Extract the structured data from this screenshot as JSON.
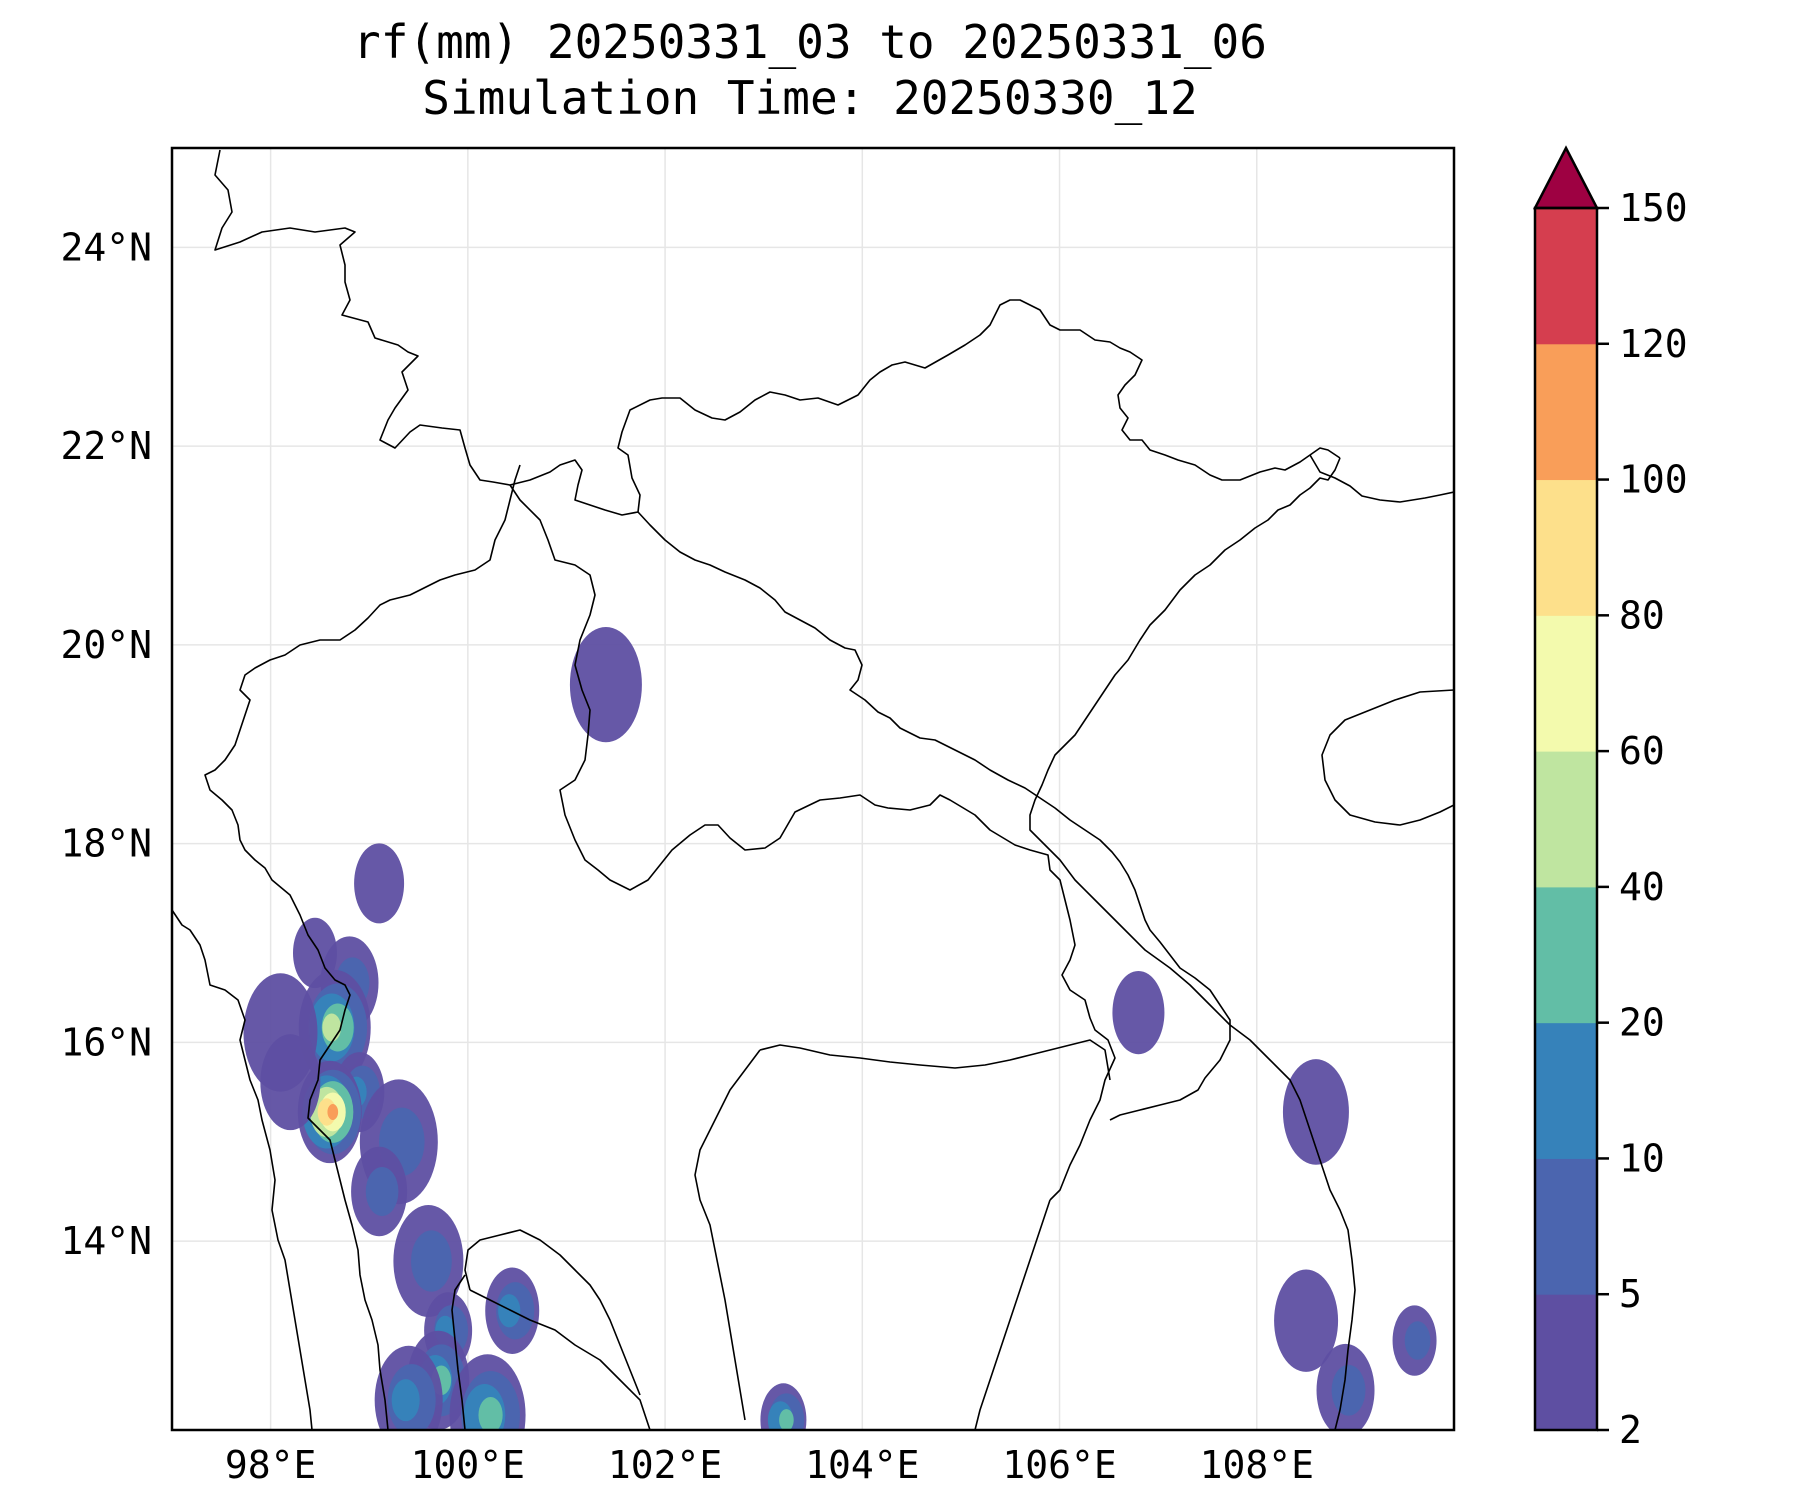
{
  "title": {
    "line1": "rf(mm) 20250331_03 to 20250331_06",
    "line2": "Simulation Time: 20250330_12"
  },
  "map": {
    "lon_range": [
      97.0,
      110.0
    ],
    "lat_range": [
      12.1,
      25.0
    ],
    "x_ticks": [
      {
        "value": 98,
        "label": "98°E"
      },
      {
        "value": 100,
        "label": "100°E"
      },
      {
        "value": 102,
        "label": "102°E"
      },
      {
        "value": 104,
        "label": "104°E"
      },
      {
        "value": 106,
        "label": "106°E"
      },
      {
        "value": 108,
        "label": "108°E"
      }
    ],
    "y_ticks": [
      {
        "value": 14,
        "label": "14°N"
      },
      {
        "value": 16,
        "label": "16°N"
      },
      {
        "value": 18,
        "label": "18°N"
      },
      {
        "value": 20,
        "label": "20°N"
      },
      {
        "value": 22,
        "label": "22°N"
      },
      {
        "value": 24,
        "label": "24°N"
      }
    ],
    "grid": true,
    "rain_cells": [
      {
        "lon": 98.45,
        "lat": 16.9,
        "level": 0
      },
      {
        "lon": 98.8,
        "lat": 16.6,
        "level": 1
      },
      {
        "lon": 98.65,
        "lat": 16.15,
        "level": 4
      },
      {
        "lon": 98.9,
        "lat": 15.5,
        "level": 2
      },
      {
        "lon": 98.6,
        "lat": 15.3,
        "level": 7
      },
      {
        "lon": 99.3,
        "lat": 15.0,
        "level": 1
      },
      {
        "lon": 99.1,
        "lat": 14.5,
        "level": 1
      },
      {
        "lon": 99.6,
        "lat": 13.8,
        "level": 1
      },
      {
        "lon": 99.8,
        "lat": 13.1,
        "level": 2
      },
      {
        "lon": 99.7,
        "lat": 12.6,
        "level": 3
      },
      {
        "lon": 100.2,
        "lat": 12.25,
        "level": 3
      },
      {
        "lon": 100.45,
        "lat": 13.3,
        "level": 2
      },
      {
        "lon": 99.4,
        "lat": 12.4,
        "level": 2
      },
      {
        "lon": 103.2,
        "lat": 12.2,
        "level": 3
      },
      {
        "lon": 98.2,
        "lat": 15.6,
        "level": 0
      },
      {
        "lon": 98.1,
        "lat": 16.1,
        "level": 0
      },
      {
        "lon": 106.8,
        "lat": 16.3,
        "level": 0
      },
      {
        "lon": 108.6,
        "lat": 15.3,
        "level": 0
      },
      {
        "lon": 109.6,
        "lat": 13.0,
        "level": 1
      },
      {
        "lon": 108.9,
        "lat": 12.5,
        "level": 1
      },
      {
        "lon": 101.4,
        "lat": 19.6,
        "level": 0
      },
      {
        "lon": 99.1,
        "lat": 17.6,
        "level": 0
      },
      {
        "lon": 108.5,
        "lat": 13.2,
        "level": 0
      }
    ]
  },
  "colorbar": {
    "levels": [
      2,
      5,
      10,
      20,
      40,
      60,
      80,
      100,
      120,
      150
    ],
    "labels": [
      "2",
      "5",
      "10",
      "20",
      "40",
      "60",
      "80",
      "100",
      "120",
      "150"
    ],
    "colors": [
      "#5e4fa2",
      "#4b65af",
      "#3682ba",
      "#62bea6",
      "#bfe5a0",
      "#f3faad",
      "#fde08b",
      "#f99e59",
      "#d53e4f"
    ],
    "extend_color": "#9e0142",
    "extend": "max"
  }
}
